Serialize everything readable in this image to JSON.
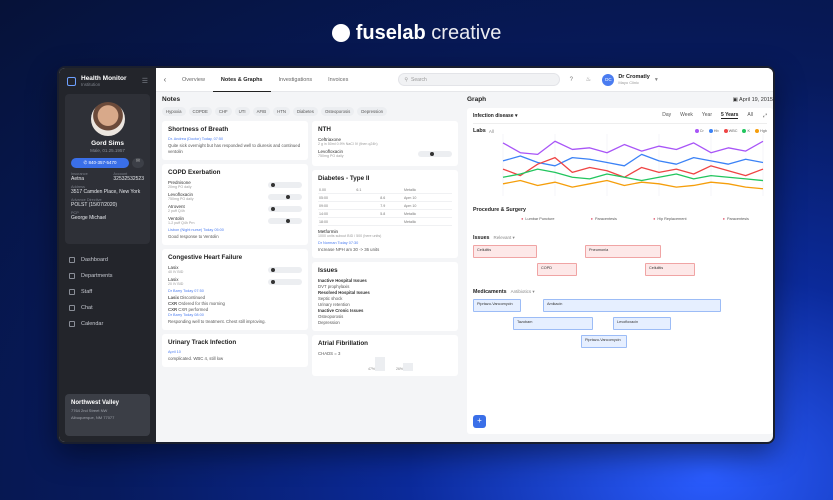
{
  "brand": {
    "bold": "fuselab",
    "light": "creative"
  },
  "app": {
    "title": "Health Monitor",
    "subtitle": "Institution"
  },
  "patient": {
    "name": "Gord Sims",
    "meta": "Male, 01.25.1957",
    "phone": "840-357-5470",
    "fields": [
      {
        "label": "Insurance",
        "value": "Aetna"
      },
      {
        "label": "Account",
        "value": "32532532523"
      },
      {
        "label": "Address",
        "value": "3517 Camden Place, New York"
      },
      {
        "label": "Advance Directive",
        "value": "POLST (15/07/2020)"
      },
      {
        "label": "PCP",
        "value": "George Michael"
      }
    ]
  },
  "nav": [
    "Dashboard",
    "Departments",
    "Staff",
    "Chat",
    "Calendar"
  ],
  "location": {
    "name": "Northwest Valley",
    "address_1": "7764 2nd Street NW",
    "address_2": "Albuquerque, NM 77077"
  },
  "topbar": {
    "tabs": [
      "Overview",
      "Notes & Graphs",
      "Investigations",
      "Invoices"
    ],
    "active_tab": "Notes & Graphs",
    "search_placeholder": "Search",
    "user_initials": "DC",
    "user_name": "Dr Cromatly",
    "user_sub": "Mayo Clinic"
  },
  "notes": {
    "title": "Notes",
    "chips": [
      "Hypoxia",
      "COPDE",
      "CHF",
      "UTI",
      "AFIB",
      "HTN",
      "Diabetes",
      "Osteoporosis",
      "Depression"
    ],
    "cards": {
      "sob": {
        "title": "Shortness of Breath",
        "meta": "Dr. Andrea (Doctor)   Today, 07:50",
        "text": "Quite sick overnight but has responded well to diuresis and continued ventolin"
      },
      "copd": {
        "title": "COPD Exerbation",
        "meds": [
          {
            "name": "Prednisone",
            "dose": "20mg PO daily"
          },
          {
            "name": "Levofloxacin",
            "dose": "750mg PO daily"
          },
          {
            "name": "Atrovent",
            "dose": "2 puff Q4h"
          },
          {
            "name": "Ventolin",
            "dose": "1-2 puff Q4h Prn"
          }
        ],
        "meta": "Lisbon (Night nurse)   Today 05:00",
        "text": "Good response to Ventolin"
      },
      "chf": {
        "title": "Congestive Heart Failure",
        "meds": [
          {
            "name": "Lasix",
            "dose": "40 IV BID"
          },
          {
            "name": "Lasix",
            "dose": "20 IV BID"
          }
        ],
        "meta": "Dr Barry   Today 07:50",
        "items": [
          {
            "name": "Lasix",
            "note": "Discontinued"
          },
          {
            "name": "CXR",
            "note": "Ordered for this morning"
          },
          {
            "name": "CXR",
            "note": "CXR performed"
          }
        ],
        "meta2": "Dr Barry   Today 08:00",
        "text": "Responding well to treatment. Chest still improving."
      },
      "uti": {
        "title": "Urinary Track Infection",
        "meta": "April 10",
        "text": "complicated. WBC 4, still low"
      },
      "nth": {
        "title": "NTH",
        "meds": [
          {
            "name": "Ceftriaxone",
            "dose": "2 g in 50ml 0.9% NaCl IV (then q24h)"
          },
          {
            "name": "Levofloxacin",
            "dose": "750mg PO daily"
          }
        ]
      },
      "diab": {
        "title": "Diabetes - Type II",
        "rows": [
          [
            "0.00",
            "6.1",
            "",
            "Metallic"
          ],
          [
            "05:00",
            "",
            "8.6",
            "Apm 10"
          ],
          [
            "09:00",
            "",
            "7.9",
            "Apm 10"
          ],
          [
            "14:00",
            "",
            "5.8",
            "Metallic"
          ],
          [
            "18:00",
            "",
            "",
            "Metallic"
          ]
        ],
        "med_name": "Metformin",
        "med_dose": "1000 units subcut BID / 500 (here units)",
        "meta": "Dr Norman   Today 07:30",
        "text": "Increase NPH am 30 -> 36 units"
      },
      "issues": {
        "title": "Issues",
        "groups": [
          {
            "name": "Inactive Hospital Issues",
            "text": "DVT prophylaxis"
          },
          {
            "name": "Resolved Hospital Issues",
            "text": "Septic shock\nUrinary retention"
          },
          {
            "name": "Inactive Cronic Issues",
            "text": "Osteoporosis\nDepression"
          }
        ]
      },
      "afib": {
        "title": "Atrial Fibrillation",
        "text": "CHADS = 3",
        "bars": [
          "47%",
          "26%"
        ]
      }
    }
  },
  "graph": {
    "title": "Graph",
    "date": "April 19, 2015",
    "filter": "Infection disease",
    "ranges": [
      "Day",
      "Week",
      "Year",
      "5 Years",
      "All"
    ],
    "active_range": "5 Years",
    "labs_title": "Labs",
    "labs_filter": "All",
    "legend": [
      {
        "name": "Cr",
        "color": "#a855f7"
      },
      {
        "name": "Hb",
        "color": "#3b82f6"
      },
      {
        "name": "WBC",
        "color": "#ef4444"
      },
      {
        "name": "K",
        "color": "#22c55e"
      },
      {
        "name": "Hgb",
        "color": "#f59e0b"
      }
    ],
    "procedures_title": "Procedure & Surgery",
    "procedures": [
      "Lumbar Puncture",
      "Paracentesis",
      "Hip Replacement",
      "Paracentesis"
    ],
    "issues_title": "Issues",
    "issues_filter": "Relevant",
    "issue_bars": [
      "Cellulitis",
      "Pneumonia",
      "COPD",
      "Cellulitis"
    ],
    "meds_title": "Medicaments",
    "meds_filter": "Antibiotics",
    "med_bars": [
      "Piprtazo-Vancomycin",
      "Amikacin",
      "Tazobam",
      "Levofloxacin",
      "Piprtazo-Vancomycin"
    ]
  },
  "chart_data": {
    "type": "line",
    "x": [
      0,
      1,
      2,
      3,
      4,
      5,
      6,
      7,
      8,
      9,
      10,
      11,
      12,
      13,
      14,
      15
    ],
    "series": [
      {
        "name": "Cr",
        "values": [
          72,
          60,
          58,
          74,
          64,
          66,
          60,
          70,
          62,
          68,
          64,
          72,
          60,
          66,
          62,
          74
        ]
      },
      {
        "name": "Hb",
        "values": [
          50,
          56,
          48,
          44,
          54,
          52,
          48,
          44,
          58,
          50,
          46,
          54,
          50,
          46,
          52,
          48
        ]
      },
      {
        "name": "WBC",
        "values": [
          40,
          32,
          46,
          54,
          36,
          42,
          38,
          30,
          42,
          36,
          40,
          34,
          44,
          38,
          32,
          40
        ]
      },
      {
        "name": "K",
        "values": [
          30,
          34,
          40,
          36,
          30,
          28,
          34,
          30,
          26,
          30,
          34,
          28,
          32,
          30,
          28,
          26
        ]
      },
      {
        "name": "Hgb",
        "values": [
          22,
          26,
          20,
          24,
          18,
          22,
          26,
          20,
          24,
          22,
          18,
          20,
          24,
          22,
          18,
          16
        ]
      }
    ]
  }
}
